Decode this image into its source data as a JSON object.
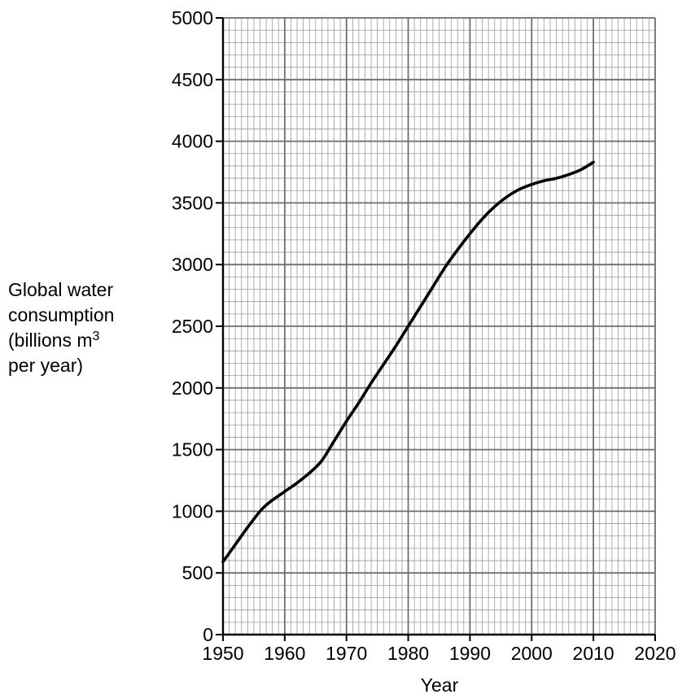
{
  "chart_data": {
    "type": "line",
    "title": "",
    "xlabel": "Year",
    "ylabel": {
      "line1": "Global water",
      "line2": "consumption",
      "line3_text": "(billions m",
      "line3_sup": "3",
      "line4": "per year)"
    },
    "xlim": [
      1950,
      2020
    ],
    "ylim": [
      0,
      5000
    ],
    "x_ticks": [
      1950,
      1960,
      1970,
      1980,
      1990,
      2000,
      2010,
      2020
    ],
    "y_ticks": [
      0,
      500,
      1000,
      1500,
      2000,
      2500,
      3000,
      3500,
      4000,
      4500,
      5000
    ],
    "grid": true,
    "minor_grid": {
      "x_step": 1,
      "y_step": 100
    },
    "series": [
      {
        "color": "#000000",
        "x": [
          1950,
          1952,
          1954,
          1956,
          1957,
          1958,
          1960,
          1962,
          1964,
          1966,
          1968,
          1970,
          1972,
          1974,
          1976,
          1978,
          1980,
          1982,
          1984,
          1986,
          1988,
          1990,
          1992,
          1994,
          1996,
          1998,
          2000,
          2002,
          2004,
          2006,
          2008,
          2010
        ],
        "y": [
          590,
          730,
          870,
          1000,
          1050,
          1090,
          1160,
          1230,
          1310,
          1410,
          1570,
          1730,
          1880,
          2040,
          2190,
          2340,
          2500,
          2660,
          2820,
          2980,
          3120,
          3250,
          3370,
          3470,
          3550,
          3610,
          3650,
          3680,
          3700,
          3730,
          3770,
          3830
        ]
      }
    ]
  }
}
